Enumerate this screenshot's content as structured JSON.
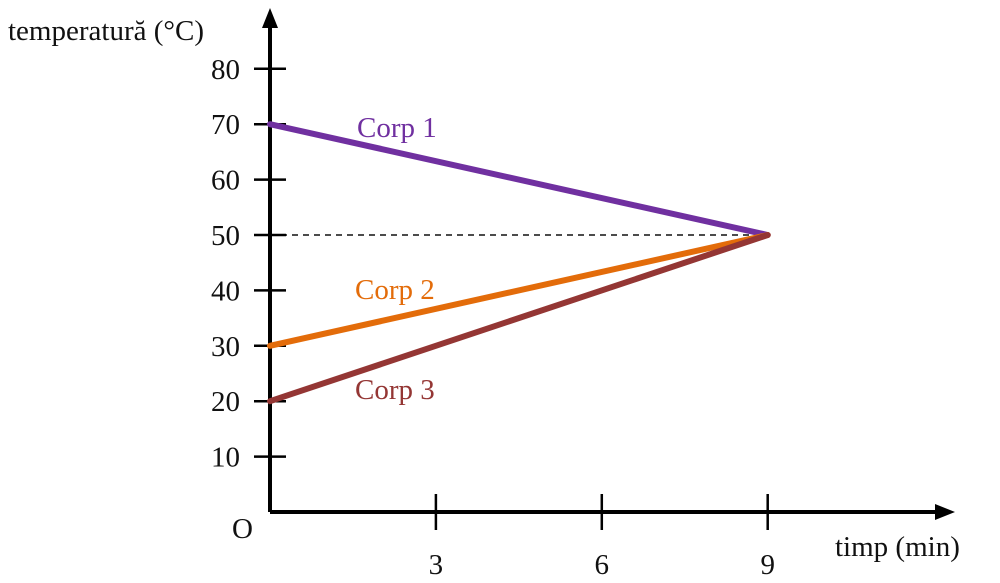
{
  "chart_data": {
    "type": "line",
    "ylabel": "temperatură (°C)",
    "xlabel": "timp (min)",
    "origin_label": "O",
    "xlim": [
      0,
      12
    ],
    "ylim": [
      0,
      90
    ],
    "x_ticks": [
      3,
      6,
      9
    ],
    "x_tick_labels": [
      "3",
      "6",
      "9"
    ],
    "y_ticks": [
      10,
      20,
      30,
      40,
      50,
      60,
      70,
      80
    ],
    "y_tick_labels": [
      "10",
      "20",
      "30",
      "40",
      "50",
      "60",
      "70",
      "80"
    ],
    "reference_line": {
      "y": 50,
      "x_start": 0,
      "x_end": 9,
      "style": "dashed"
    },
    "series": [
      {
        "name": "Corp 1",
        "color": "#7030a0",
        "x": [
          0,
          9
        ],
        "y": [
          70,
          50
        ]
      },
      {
        "name": "Corp 2",
        "color": "#e36c0a",
        "x": [
          0,
          9
        ],
        "y": [
          30,
          50
        ]
      },
      {
        "name": "Corp 3",
        "color": "#943634",
        "x": [
          0,
          9
        ],
        "y": [
          20,
          50
        ]
      }
    ]
  }
}
